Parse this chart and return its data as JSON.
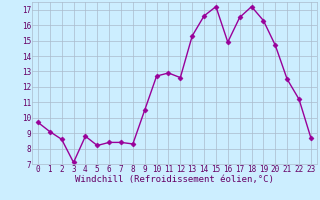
{
  "x": [
    0,
    1,
    2,
    3,
    4,
    5,
    6,
    7,
    8,
    9,
    10,
    11,
    12,
    13,
    14,
    15,
    16,
    17,
    18,
    19,
    20,
    21,
    22,
    23
  ],
  "y": [
    9.7,
    9.1,
    8.6,
    7.1,
    8.8,
    8.2,
    8.4,
    8.4,
    8.3,
    10.5,
    12.7,
    12.9,
    12.6,
    15.3,
    16.6,
    17.2,
    14.9,
    16.5,
    17.2,
    16.3,
    14.7,
    12.5,
    11.2,
    8.7
  ],
  "line_color": "#990099",
  "marker": "D",
  "markersize": 2.5,
  "linewidth": 1.0,
  "bg_color": "#cceeff",
  "grid_color": "#aabbcc",
  "xlabel": "Windchill (Refroidissement éolien,°C)",
  "xlabel_fontsize": 6.5,
  "xlabel_color": "#660066",
  "tick_color": "#660066",
  "tick_fontsize": 5.5,
  "ylim": [
    7,
    17.5
  ],
  "xlim": [
    -0.5,
    23.5
  ]
}
